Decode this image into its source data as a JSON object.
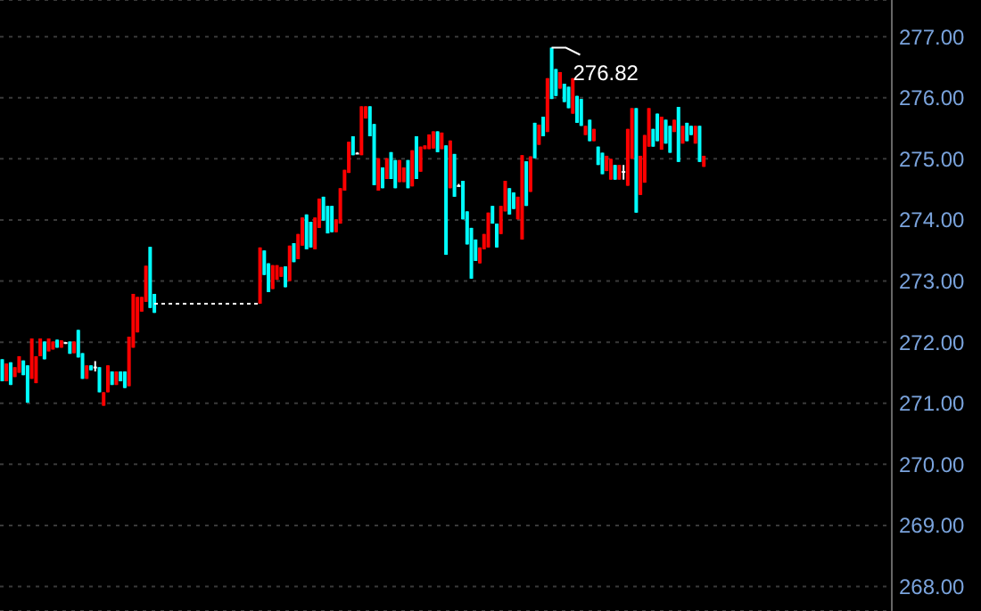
{
  "chart_data": {
    "type": "candlestick",
    "categories": [
      null,
      null,
      null,
      null,
      null,
      null,
      null,
      null,
      null,
      null,
      null,
      null,
      null,
      null,
      null,
      null,
      null,
      null,
      null,
      null,
      null,
      null,
      null,
      null,
      null,
      null,
      null,
      null,
      null,
      null,
      null,
      null,
      null,
      null,
      null,
      null,
      null,
      null,
      null,
      null,
      null,
      null,
      null,
      null,
      null,
      null,
      null,
      null,
      null,
      null,
      null,
      null,
      null,
      null,
      null,
      null,
      null,
      null,
      null,
      null,
      null,
      null,
      null,
      null,
      null,
      null,
      null,
      null,
      null,
      null,
      null,
      null,
      null,
      null,
      null,
      null,
      null,
      null,
      null,
      null,
      null,
      null,
      null,
      null,
      null,
      null,
      null,
      null,
      null,
      null,
      null,
      null,
      null,
      null,
      null,
      null,
      null,
      null,
      null,
      null,
      null,
      null,
      null,
      null,
      null,
      null,
      null,
      null,
      null,
      null,
      null,
      null,
      null,
      null,
      null,
      null,
      null,
      null,
      null,
      null,
      null,
      null,
      null,
      null,
      null,
      null,
      null,
      null,
      null,
      null,
      null,
      null,
      null,
      null,
      null,
      null,
      null,
      null,
      null,
      null,
      null,
      null,
      null,
      null,
      null,
      null,
      null,
      null,
      null,
      null,
      null,
      null,
      null,
      null,
      null,
      null,
      null,
      null,
      null,
      null,
      null,
      null,
      null,
      null,
      null,
      null,
      null,
      null,
      null,
      null,
      null,
      null,
      null,
      null,
      null,
      null,
      null,
      null,
      null,
      null,
      null,
      null,
      null,
      null,
      null,
      null,
      null,
      null,
      null,
      null,
      null,
      null,
      null,
      null,
      null,
      null,
      null,
      null,
      null,
      null,
      null,
      null,
      null,
      null,
      null,
      null,
      null,
      null,
      null,
      null,
      null
    ],
    "series": [
      {
        "ohlc": [
          [
            271.72,
            271.72,
            271.36,
            271.36
          ],
          [
            271.36,
            271.65,
            271.36,
            271.65
          ],
          [
            271.67,
            271.67,
            271.3,
            271.3
          ],
          [
            271.43,
            271.59,
            271.43,
            271.59
          ],
          [
            271.5,
            271.77,
            271.5,
            271.77
          ],
          [
            271.7,
            271.7,
            271.46,
            271.46
          ],
          [
            271.62,
            271.62,
            271.01,
            271.01
          ],
          [
            271.4,
            272.06,
            271.4,
            272.06
          ],
          [
            271.33,
            271.77,
            271.33,
            271.77
          ],
          [
            271.77,
            272.06,
            271.77,
            272.06
          ],
          [
            272.01,
            272.01,
            271.72,
            271.72
          ],
          [
            271.85,
            272.06,
            271.85,
            272.06
          ],
          [
            271.88,
            272.01,
            271.88,
            272.01
          ],
          [
            272.04,
            272.04,
            271.91,
            271.91
          ],
          [
            271.91,
            272.03,
            271.91,
            272.03
          ],
          [
            272.0,
            272.0,
            271.98,
            271.98
          ],
          [
            272.01,
            272.01,
            271.81,
            271.81
          ],
          [
            271.82,
            272.01,
            271.82,
            272.01
          ],
          [
            272.2,
            272.2,
            271.75,
            271.75
          ],
          [
            271.82,
            271.82,
            271.4,
            271.4
          ],
          [
            271.4,
            271.62,
            271.4,
            271.62
          ],
          [
            271.62,
            271.62,
            271.54,
            271.54
          ],
          [
            271.6,
            271.69,
            271.52,
            271.6
          ],
          [
            271.59,
            271.59,
            271.18,
            271.18
          ],
          [
            270.96,
            271.18,
            270.96,
            271.18
          ],
          [
            271.18,
            271.62,
            271.18,
            271.62
          ],
          [
            271.52,
            271.52,
            271.3,
            271.3
          ],
          [
            271.3,
            271.52,
            271.3,
            271.52
          ],
          [
            271.52,
            271.52,
            271.36,
            271.36
          ],
          [
            271.52,
            271.52,
            271.25,
            271.25
          ],
          [
            271.28,
            272.09,
            271.28,
            272.09
          ],
          [
            271.91,
            272.79,
            271.91,
            272.79
          ],
          [
            272.16,
            272.74,
            272.16,
            272.74
          ],
          [
            272.5,
            272.74,
            272.5,
            272.74
          ],
          [
            272.66,
            273.25,
            272.66,
            273.25
          ],
          [
            273.56,
            273.56,
            272.56,
            272.56
          ],
          [
            272.79,
            272.79,
            272.48,
            272.48
          ],
          null,
          null,
          null,
          null,
          null,
          null,
          null,
          null,
          null,
          null,
          null,
          null,
          null,
          null,
          null,
          null,
          null,
          null,
          null,
          null,
          null,
          null,
          null,
          null,
          [
            272.63,
            273.55,
            272.63,
            273.55
          ],
          [
            273.5,
            273.5,
            273.1,
            273.1
          ],
          [
            273.29,
            273.29,
            272.82,
            272.82
          ],
          [
            272.87,
            273.26,
            272.87,
            273.26
          ],
          [
            273.02,
            273.26,
            273.02,
            273.26
          ],
          [
            273.07,
            273.23,
            273.07,
            273.23
          ],
          [
            273.24,
            273.24,
            272.9,
            272.9
          ],
          [
            273.0,
            273.58,
            273.0,
            273.58
          ],
          [
            273.62,
            273.62,
            273.31,
            273.31
          ],
          [
            273.36,
            273.77,
            273.36,
            273.77
          ],
          [
            273.58,
            274.04,
            273.58,
            274.04
          ],
          [
            274.09,
            274.09,
            273.52,
            273.52
          ],
          [
            273.97,
            273.97,
            273.55,
            273.55
          ],
          [
            273.52,
            274.04,
            273.52,
            274.04
          ],
          [
            273.87,
            274.35,
            273.87,
            274.35
          ],
          [
            274.38,
            274.38,
            273.99,
            273.99
          ],
          [
            274.23,
            274.23,
            273.78,
            273.78
          ],
          [
            274.23,
            274.23,
            273.8,
            273.8
          ],
          [
            273.8,
            274.01,
            273.8,
            274.01
          ],
          [
            273.94,
            274.52,
            273.94,
            274.52
          ],
          [
            274.48,
            274.82,
            274.48,
            274.82
          ],
          [
            274.77,
            275.28,
            274.77,
            275.28
          ],
          [
            275.37,
            275.37,
            275.06,
            275.06
          ],
          [
            275.1,
            275.11,
            275.09,
            275.1
          ],
          [
            275.06,
            275.86,
            275.06,
            275.86
          ],
          [
            275.66,
            275.86,
            275.66,
            275.86
          ],
          [
            275.86,
            275.86,
            275.37,
            275.37
          ],
          [
            275.57,
            275.57,
            274.57,
            274.57
          ],
          [
            274.48,
            275.01,
            274.48,
            275.01
          ],
          [
            274.86,
            274.86,
            274.52,
            274.52
          ],
          [
            274.67,
            275.01,
            274.67,
            275.01
          ],
          [
            275.11,
            275.11,
            274.67,
            274.67
          ],
          [
            274.98,
            274.98,
            274.52,
            274.52
          ],
          [
            274.62,
            274.98,
            274.62,
            274.98
          ],
          [
            274.62,
            274.86,
            274.62,
            274.86
          ],
          [
            274.98,
            274.98,
            274.52,
            274.52
          ],
          [
            274.55,
            275.14,
            274.55,
            275.14
          ],
          [
            275.37,
            275.37,
            274.67,
            274.67
          ],
          [
            274.79,
            275.2,
            274.79,
            275.2
          ],
          [
            275.16,
            275.22,
            275.16,
            275.22
          ],
          [
            275.16,
            275.4,
            275.16,
            275.4
          ],
          [
            275.17,
            275.45,
            275.17,
            275.45
          ],
          [
            275.45,
            275.45,
            275.11,
            275.11
          ],
          [
            275.16,
            275.43,
            275.16,
            275.43
          ],
          [
            275.22,
            275.22,
            273.43,
            273.43
          ],
          [
            274.52,
            275.3,
            274.52,
            275.3
          ],
          [
            275.08,
            275.08,
            274.38,
            274.38
          ],
          [
            274.57,
            274.59,
            274.55,
            274.57
          ],
          [
            274.64,
            274.64,
            274.01,
            274.01
          ],
          [
            274.14,
            274.14,
            273.6,
            273.6
          ],
          [
            273.87,
            273.87,
            273.04,
            273.04
          ],
          [
            273.68,
            273.68,
            273.33,
            273.33
          ],
          [
            273.29,
            273.55,
            273.29,
            273.55
          ],
          [
            273.52,
            273.77,
            273.52,
            273.77
          ],
          [
            273.55,
            274.12,
            273.55,
            274.12
          ],
          [
            274.23,
            274.23,
            273.94,
            273.94
          ],
          [
            273.94,
            273.94,
            273.55,
            273.55
          ],
          [
            273.77,
            274.23,
            273.77,
            274.23
          ],
          [
            274.14,
            274.64,
            274.14,
            274.64
          ],
          [
            274.52,
            274.52,
            274.09,
            274.09
          ],
          [
            274.45,
            274.45,
            274.18,
            274.18
          ],
          [
            274.01,
            274.38,
            274.01,
            274.38
          ],
          [
            273.68,
            275.06,
            273.68,
            275.06
          ],
          [
            274.96,
            274.96,
            274.23,
            274.23
          ],
          [
            274.46,
            275.04,
            274.46,
            275.04
          ],
          [
            275.59,
            275.59,
            275.01,
            275.01
          ],
          [
            275.23,
            275.56,
            275.23,
            275.56
          ],
          [
            275.69,
            275.69,
            275.37,
            275.37
          ],
          [
            275.44,
            276.32,
            275.44,
            276.32
          ],
          [
            276.82,
            276.82,
            275.98,
            275.98
          ],
          [
            276.47,
            276.47,
            276.03,
            276.03
          ],
          [
            276.15,
            276.42,
            276.15,
            276.42
          ],
          [
            276.23,
            276.23,
            275.93,
            275.93
          ],
          [
            276.18,
            276.18,
            275.83,
            275.83
          ],
          [
            275.74,
            276.32,
            275.74,
            276.32
          ],
          [
            276.03,
            276.03,
            275.59,
            275.59
          ],
          [
            275.98,
            275.98,
            275.54,
            275.54
          ],
          [
            275.39,
            275.54,
            275.39,
            275.54
          ],
          [
            275.64,
            275.64,
            275.29,
            275.29
          ],
          [
            275.29,
            275.49,
            275.29,
            275.49
          ],
          [
            275.2,
            275.2,
            274.9,
            274.9
          ],
          [
            275.1,
            275.1,
            274.75,
            274.75
          ],
          [
            274.8,
            275.05,
            274.8,
            275.05
          ],
          [
            274.66,
            275.0,
            274.66,
            275.0
          ],
          [
            274.9,
            274.9,
            274.66,
            274.66
          ],
          [
            274.66,
            274.9,
            274.66,
            274.9
          ],
          [
            274.8,
            274.9,
            274.66,
            274.8
          ],
          [
            274.56,
            275.49,
            274.56,
            275.49
          ],
          [
            275.0,
            275.83,
            275.0,
            275.83
          ],
          [
            275.83,
            275.83,
            274.12,
            274.12
          ],
          [
            274.41,
            275.05,
            274.41,
            275.05
          ],
          [
            274.61,
            275.39,
            274.61,
            275.39
          ],
          [
            275.2,
            275.83,
            275.2,
            275.83
          ],
          [
            275.49,
            275.49,
            275.2,
            275.2
          ],
          [
            275.74,
            275.74,
            275.29,
            275.29
          ],
          [
            275.15,
            275.69,
            275.15,
            275.69
          ],
          [
            275.64,
            275.64,
            275.25,
            275.25
          ],
          [
            275.54,
            275.54,
            275.1,
            275.1
          ],
          [
            275.44,
            275.64,
            275.44,
            275.64
          ],
          [
            275.85,
            275.85,
            274.95,
            274.95
          ],
          [
            275.25,
            275.54,
            275.25,
            275.54
          ],
          [
            275.59,
            275.59,
            275.29,
            275.29
          ],
          [
            275.54,
            275.54,
            275.39,
            275.39
          ],
          [
            275.25,
            275.54,
            275.25,
            275.54
          ],
          [
            275.54,
            275.54,
            274.95,
            274.95
          ],
          [
            274.87,
            275.05,
            274.87,
            275.05
          ],
          null,
          null,
          null,
          null,
          null,
          null,
          null,
          null,
          null,
          null,
          null,
          null,
          null,
          null,
          null,
          null,
          null,
          null,
          null,
          null,
          null,
          null,
          null,
          null,
          null,
          null,
          null,
          null,
          null,
          null,
          null,
          null,
          null,
          null,
          null,
          null,
          null,
          null,
          null,
          null,
          null,
          null,
          null,
          null
        ],
        "colors": [
          "#00ffff",
          "#ff0000",
          "#00ffff",
          "#ff0000",
          "#ff0000",
          "#00ffff",
          "#00ffff",
          "#ff0000",
          "#ff0000",
          "#ff0000",
          "#00ffff",
          "#ff0000",
          "#ff0000",
          "#00ffff",
          "#ff0000",
          "#ffffff",
          "#00ffff",
          "#ff0000",
          "#00ffff",
          "#00ffff",
          "#ff0000",
          "#00ffff",
          "#ffffff",
          "#00ffff",
          "#ff0000",
          "#ff0000",
          "#00ffff",
          "#ff0000",
          "#00ffff",
          "#00ffff",
          "#ff0000",
          "#ff0000",
          "#ff0000",
          "#ff0000",
          "#ff0000",
          "#00ffff",
          "#00ffff",
          null,
          null,
          null,
          null,
          null,
          null,
          null,
          null,
          null,
          null,
          null,
          null,
          null,
          null,
          null,
          null,
          null,
          null,
          null,
          null,
          null,
          null,
          null,
          null,
          "#ff0000",
          "#00ffff",
          "#00ffff",
          "#ff0000",
          "#ff0000",
          "#ff0000",
          "#00ffff",
          "#ff0000",
          "#00ffff",
          "#ff0000",
          "#ff0000",
          "#00ffff",
          "#00ffff",
          "#ff0000",
          "#ff0000",
          "#00ffff",
          "#00ffff",
          "#00ffff",
          "#ff0000",
          "#ff0000",
          "#ff0000",
          "#ff0000",
          "#00ffff",
          "#ffffff",
          "#ff0000",
          "#ff0000",
          "#00ffff",
          "#00ffff",
          "#ff0000",
          "#00ffff",
          "#ff0000",
          "#00ffff",
          "#00ffff",
          "#ff0000",
          "#ff0000",
          "#00ffff",
          "#ff0000",
          "#00ffff",
          "#ff0000",
          "#ff0000",
          "#ff0000",
          "#ff0000",
          "#00ffff",
          "#ff0000",
          "#00ffff",
          "#ff0000",
          "#00ffff",
          "#ffffff",
          "#00ffff",
          "#00ffff",
          "#00ffff",
          "#00ffff",
          "#ff0000",
          "#ff0000",
          "#ff0000",
          "#00ffff",
          "#00ffff",
          "#ff0000",
          "#ff0000",
          "#00ffff",
          "#00ffff",
          "#ff0000",
          "#ff0000",
          "#00ffff",
          "#ff0000",
          "#00ffff",
          "#ff0000",
          "#00ffff",
          "#ff0000",
          "#00ffff",
          "#00ffff",
          "#ff0000",
          "#00ffff",
          "#00ffff",
          "#ff0000",
          "#00ffff",
          "#00ffff",
          "#ff0000",
          "#00ffff",
          "#ff0000",
          "#00ffff",
          "#00ffff",
          "#ff0000",
          "#ff0000",
          "#00ffff",
          "#ff0000",
          "#ffffff",
          "#ff0000",
          "#ff0000",
          "#00ffff",
          "#ff0000",
          "#ff0000",
          "#ff0000",
          "#00ffff",
          "#00ffff",
          "#ff0000",
          "#00ffff",
          "#00ffff",
          "#ff0000",
          "#00ffff",
          "#ff0000",
          "#00ffff",
          "#00ffff",
          "#ff0000",
          "#00ffff",
          "#ff0000",
          null,
          null,
          null,
          null,
          null,
          null,
          null,
          null,
          null,
          null,
          null,
          null,
          null,
          null,
          null,
          null,
          null,
          null,
          null,
          null,
          null,
          null,
          null,
          null,
          null,
          null,
          null,
          null,
          null,
          null,
          null,
          null,
          null,
          null,
          null,
          null,
          null,
          null,
          null,
          null,
          null,
          null,
          null,
          null
        ]
      },
      {
        "type": "line",
        "color": "#ffffff",
        "line_style": "dotted",
        "values": [
          null,
          null,
          null,
          null,
          null,
          null,
          null,
          null,
          null,
          null,
          null,
          null,
          null,
          null,
          null,
          null,
          null,
          null,
          null,
          null,
          null,
          null,
          null,
          null,
          null,
          null,
          null,
          null,
          null,
          null,
          null,
          null,
          null,
          null,
          null,
          null,
          272.63,
          272.63,
          272.63,
          272.63,
          272.63,
          272.63,
          272.63,
          272.63,
          272.63,
          272.63,
          272.63,
          272.63,
          272.63,
          272.63,
          272.63,
          272.63,
          272.63,
          272.63,
          272.63,
          272.63,
          272.63,
          272.63,
          272.63,
          272.63,
          272.63,
          272.63,
          null,
          null,
          null,
          null,
          null,
          null,
          null,
          null,
          null,
          null,
          null,
          null,
          null,
          null,
          null,
          null,
          null,
          null,
          null,
          null,
          null,
          null,
          null,
          null,
          null,
          null,
          null,
          null,
          null,
          null,
          null,
          null,
          null,
          null,
          null,
          null,
          null,
          null,
          null,
          null,
          null,
          null,
          null,
          null,
          null,
          null,
          null,
          null,
          null,
          null,
          null,
          null,
          null,
          null,
          null,
          null,
          null,
          null,
          null,
          null,
          null,
          null,
          null,
          null,
          null,
          null,
          null,
          null,
          null,
          null,
          null,
          null,
          null,
          null,
          null,
          null,
          null,
          null,
          null,
          null,
          null,
          null,
          null,
          null,
          null,
          null,
          null,
          null,
          null,
          null,
          null,
          null,
          null,
          null,
          null,
          null,
          null,
          null,
          null,
          null,
          null,
          null,
          null,
          null,
          null,
          null,
          null,
          null,
          null,
          null,
          null,
          null,
          null,
          null,
          null,
          null,
          null,
          null,
          null,
          null,
          null,
          null,
          null,
          null,
          null,
          null,
          null,
          null,
          null,
          null,
          null,
          null,
          null,
          null,
          null,
          null,
          null,
          null,
          null,
          null,
          null,
          null,
          null,
          null,
          null,
          null,
          null,
          null,
          null
        ]
      }
    ],
    "ylim": [
      267.6,
      277.6
    ],
    "yticks": [
      {
        "value": 268,
        "label": "268.00"
      },
      {
        "value": 269,
        "label": "269.00"
      },
      {
        "value": 270,
        "label": "270.00"
      },
      {
        "value": 271,
        "label": "271.00"
      },
      {
        "value": 272,
        "label": "272.00"
      },
      {
        "value": 273,
        "label": "273.00"
      },
      {
        "value": 274,
        "label": "274.00"
      },
      {
        "value": 275,
        "label": "275.00"
      },
      {
        "value": 276,
        "label": "276.00"
      },
      {
        "value": 277,
        "label": "277.00"
      }
    ],
    "grid": "y",
    "tick_labels": "y",
    "annotations": [
      "276.82"
    ]
  }
}
